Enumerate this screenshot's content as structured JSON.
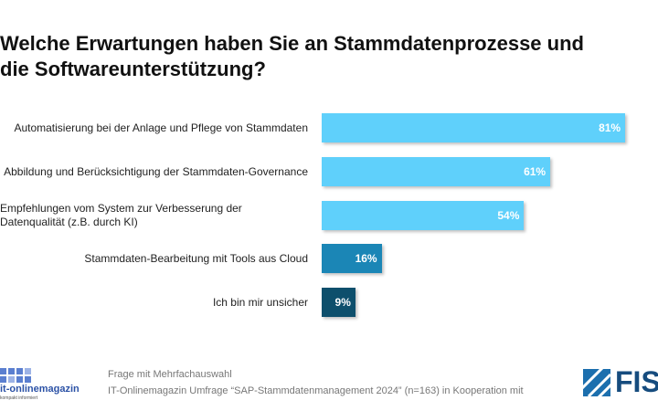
{
  "chart_data": {
    "type": "bar",
    "orientation": "horizontal",
    "title": "Welche Erwartungen haben Sie an Stammdatenprozesse und die Softwareunterstützung?",
    "categories": [
      "Automatisierung bei der Anlage und Pflege von Stammdaten",
      "Abbildung und Berücksichtigung der Stammdaten-Governance",
      "Empfehlungen vom System zur Verbesserung der Datenqualität (z.B. durch KI)",
      "Stammdaten-Bearbeitung mit Tools aus Cloud",
      "Ich bin mir unsicher"
    ],
    "values": [
      81,
      61,
      54,
      16,
      9
    ],
    "value_labels": [
      "81%",
      "61%",
      "54%",
      "16%",
      "9%"
    ],
    "colors": [
      "#5fd0fb",
      "#5fd0fb",
      "#5fd0fb",
      "#1b86b6",
      "#0d4f6c"
    ],
    "notes": [
      "Frage mit Mehrfachauswahl",
      "IT-Onlinemagazin Umfrage “SAP-Stammdatenmanagement 2024”  (n=163) in Kooperation mit"
    ]
  },
  "logos": {
    "left": "it-onlinemagazin",
    "left_tagline": "kompakt informiert",
    "right": "FIS"
  }
}
